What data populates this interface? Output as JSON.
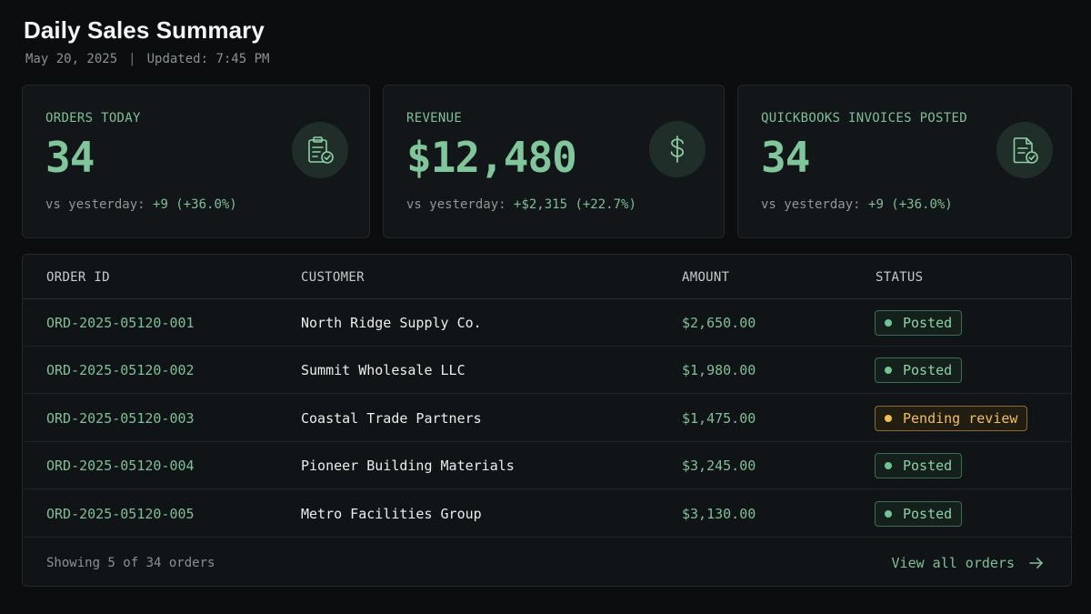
{
  "header": {
    "title": "Daily Sales Summary",
    "date": "May 20, 2025",
    "separator": "|",
    "updated": "Updated: 7:45 PM"
  },
  "cards": [
    {
      "label": "ORDERS TODAY",
      "value": "34",
      "delta_prefix": "vs yesterday: ",
      "delta": "+9 (+36.0%)",
      "icon": "clipboard-check-icon"
    },
    {
      "label": "REVENUE",
      "value": "$12,480",
      "delta_prefix": "vs yesterday: ",
      "delta": "+$2,315 (+22.7%)",
      "icon": "dollar-icon"
    },
    {
      "label": "QUICKBOOKS INVOICES POSTED",
      "value": "34",
      "delta_prefix": "vs yesterday: ",
      "delta": "+9 (+36.0%)",
      "icon": "invoice-check-icon"
    }
  ],
  "table": {
    "columns": [
      "ORDER ID",
      "CUSTOMER",
      "AMOUNT",
      "STATUS"
    ],
    "rows": [
      {
        "id": "ORD-2025-05120-001",
        "customer": "North Ridge Supply Co.",
        "amount": "$2,650.00",
        "status": "Posted"
      },
      {
        "id": "ORD-2025-05120-002",
        "customer": "Summit Wholesale LLC",
        "amount": "$1,980.00",
        "status": "Posted"
      },
      {
        "id": "ORD-2025-05120-003",
        "customer": "Coastal Trade Partners",
        "amount": "$1,475.00",
        "status": "Pending review"
      },
      {
        "id": "ORD-2025-05120-004",
        "customer": "Pioneer Building Materials",
        "amount": "$3,245.00",
        "status": "Posted"
      },
      {
        "id": "ORD-2025-05120-005",
        "customer": "Metro Facilities Group",
        "amount": "$3,130.00",
        "status": "Posted"
      }
    ],
    "footer_count": "Showing 5 of 34 orders",
    "view_all": "View all orders"
  },
  "colors": {
    "accent": "#7fc79a",
    "posted": "#6fc690",
    "pending": "#f2bf4e",
    "background": "#0b0d0e"
  }
}
